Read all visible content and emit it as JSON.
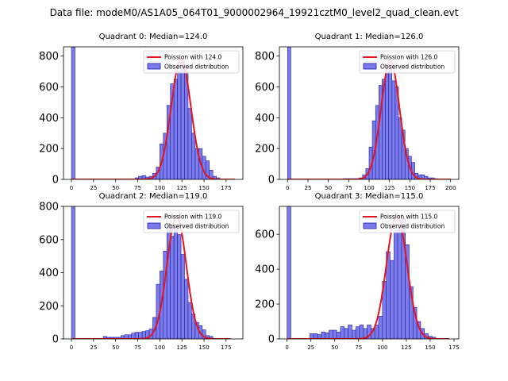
{
  "figure": {
    "title": "Data file: modeM0/AS1A05_064T01_9000002964_19921cztM0_level2_quad_clean.evt"
  },
  "colors": {
    "bar_fill": "#7b7bea",
    "bar_edge": "#1f1fa8",
    "curve": "#e8141c",
    "axes": "#000000",
    "legend_border": "#cccccc"
  },
  "chart_data": [
    {
      "type": "bar",
      "title": "Quadrant 0: Median=124.0",
      "median": 124.0,
      "xlim": [
        -9,
        194
      ],
      "ylim": [
        0,
        860
      ],
      "xticks": [
        0,
        25,
        50,
        75,
        100,
        125,
        150,
        175
      ],
      "yticks": [
        0,
        200,
        400,
        600,
        800
      ],
      "bin_width": 4,
      "hist_bins": [
        [
          0,
          860
        ],
        [
          72,
          10
        ],
        [
          76,
          20
        ],
        [
          80,
          25
        ],
        [
          84,
          15
        ],
        [
          88,
          20
        ],
        [
          92,
          40
        ],
        [
          96,
          80
        ],
        [
          100,
          230
        ],
        [
          104,
          300
        ],
        [
          108,
          480
        ],
        [
          112,
          620
        ],
        [
          116,
          650
        ],
        [
          120,
          700
        ],
        [
          124,
          760
        ],
        [
          128,
          700
        ],
        [
          132,
          460
        ],
        [
          136,
          300
        ],
        [
          140,
          200
        ],
        [
          144,
          200
        ],
        [
          148,
          150
        ],
        [
          152,
          120
        ],
        [
          156,
          60
        ],
        [
          160,
          20
        ],
        [
          164,
          10
        ]
      ],
      "series": [
        {
          "name": "Poission with 124.0",
          "kind": "poisson-curve",
          "lambda": 124.0,
          "peak": 780,
          "x_range": [
            0,
            185
          ]
        },
        {
          "name": "Observed distribution",
          "kind": "histogram"
        }
      ]
    },
    {
      "type": "bar",
      "title": "Quadrant 1: Median=126.0",
      "median": 126.0,
      "xlim": [
        -10,
        210
      ],
      "ylim": [
        0,
        860
      ],
      "xticks": [
        0,
        25,
        50,
        75,
        100,
        125,
        150,
        175,
        200
      ],
      "yticks": [
        0,
        200,
        400,
        600,
        800
      ],
      "bin_width": 4,
      "hist_bins": [
        [
          0,
          860
        ],
        [
          68,
          5
        ],
        [
          72,
          5
        ],
        [
          76,
          5
        ],
        [
          80,
          5
        ],
        [
          84,
          5
        ],
        [
          88,
          10
        ],
        [
          92,
          30
        ],
        [
          96,
          70
        ],
        [
          100,
          210
        ],
        [
          104,
          380
        ],
        [
          108,
          480
        ],
        [
          112,
          610
        ],
        [
          116,
          650
        ],
        [
          120,
          700
        ],
        [
          124,
          760
        ],
        [
          128,
          640
        ],
        [
          132,
          600
        ],
        [
          136,
          400
        ],
        [
          140,
          320
        ],
        [
          144,
          200
        ],
        [
          148,
          150
        ],
        [
          152,
          110
        ],
        [
          156,
          40
        ],
        [
          160,
          30
        ],
        [
          164,
          30
        ],
        [
          168,
          20
        ],
        [
          172,
          10
        ],
        [
          176,
          10
        ],
        [
          180,
          5
        ]
      ],
      "series": [
        {
          "name": "Poission with 126.0",
          "kind": "poisson-curve",
          "lambda": 126.0,
          "peak": 770,
          "x_range": [
            0,
            200
          ]
        },
        {
          "name": "Observed distribution",
          "kind": "histogram"
        }
      ]
    },
    {
      "type": "bar",
      "title": "Quadrant 2: Median=119.0",
      "median": 119.0,
      "xlim": [
        -9,
        194
      ],
      "ylim": [
        0,
        800
      ],
      "xticks": [
        0,
        25,
        50,
        75,
        100,
        125,
        150,
        175
      ],
      "yticks": [
        0,
        200,
        400,
        600,
        800
      ],
      "bin_width": 4,
      "hist_bins": [
        [
          0,
          800
        ],
        [
          36,
          15
        ],
        [
          40,
          10
        ],
        [
          44,
          10
        ],
        [
          48,
          10
        ],
        [
          52,
          10
        ],
        [
          56,
          20
        ],
        [
          60,
          25
        ],
        [
          64,
          25
        ],
        [
          68,
          35
        ],
        [
          72,
          40
        ],
        [
          76,
          40
        ],
        [
          80,
          45
        ],
        [
          84,
          50
        ],
        [
          88,
          60
        ],
        [
          92,
          130
        ],
        [
          96,
          330
        ],
        [
          100,
          410
        ],
        [
          104,
          530
        ],
        [
          108,
          700
        ],
        [
          112,
          620
        ],
        [
          116,
          680
        ],
        [
          120,
          630
        ],
        [
          124,
          510
        ],
        [
          128,
          360
        ],
        [
          132,
          220
        ],
        [
          136,
          150
        ],
        [
          140,
          100
        ],
        [
          144,
          80
        ],
        [
          148,
          55
        ],
        [
          152,
          20
        ],
        [
          156,
          15
        ]
      ],
      "series": [
        {
          "name": "Poission with 119.0",
          "kind": "poisson-curve",
          "lambda": 119.0,
          "peak": 740,
          "x_range": [
            0,
            180
          ]
        },
        {
          "name": "Observed distribution",
          "kind": "histogram"
        }
      ]
    },
    {
      "type": "bar",
      "title": "Quadrant 3: Median=115.0",
      "median": 115.0,
      "xlim": [
        -8,
        180
      ],
      "ylim": [
        0,
        760
      ],
      "xticks": [
        0,
        25,
        50,
        75,
        100,
        125,
        150,
        175
      ],
      "yticks": [
        0,
        200,
        400,
        600
      ],
      "bin_width": 4,
      "hist_bins": [
        [
          0,
          760
        ],
        [
          24,
          30
        ],
        [
          28,
          30
        ],
        [
          32,
          25
        ],
        [
          36,
          40
        ],
        [
          40,
          35
        ],
        [
          44,
          50
        ],
        [
          48,
          50
        ],
        [
          52,
          40
        ],
        [
          56,
          70
        ],
        [
          60,
          60
        ],
        [
          64,
          80
        ],
        [
          68,
          50
        ],
        [
          72,
          70
        ],
        [
          76,
          80
        ],
        [
          80,
          60
        ],
        [
          84,
          80
        ],
        [
          88,
          60
        ],
        [
          92,
          80
        ],
        [
          96,
          130
        ],
        [
          100,
          330
        ],
        [
          104,
          500
        ],
        [
          108,
          450
        ],
        [
          112,
          620
        ],
        [
          116,
          640
        ],
        [
          120,
          690
        ],
        [
          124,
          540
        ],
        [
          128,
          300
        ],
        [
          132,
          180
        ],
        [
          136,
          100
        ],
        [
          140,
          60
        ],
        [
          144,
          30
        ],
        [
          148,
          15
        ],
        [
          152,
          10
        ]
      ],
      "series": [
        {
          "name": "Poission with 115.0",
          "kind": "poisson-curve",
          "lambda": 115.0,
          "peak": 710,
          "x_range": [
            0,
            170
          ]
        },
        {
          "name": "Observed distribution",
          "kind": "histogram"
        }
      ]
    }
  ]
}
